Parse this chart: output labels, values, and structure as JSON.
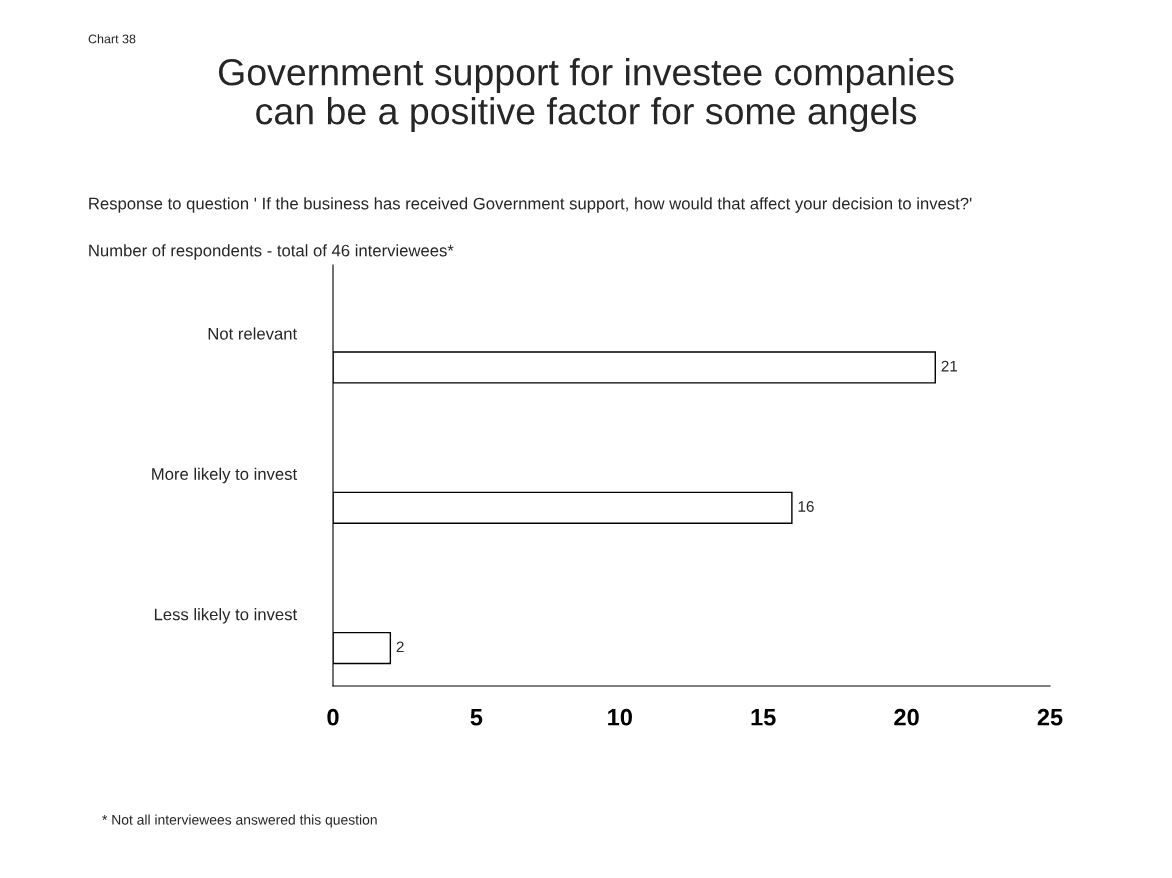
{
  "chart_data": {
    "type": "bar",
    "orientation": "horizontal",
    "title": "Government support for investee companies\ncan be a positive factor for some angels",
    "subtitle": "Response to question ' If the business has received Government support, how would that affect your decision to invest?'",
    "annotations": [
      "Chart 38",
      "Number of respondents - total of 46 interviewees*",
      "* Not all interviewees answered this question"
    ],
    "categories": [
      "Not relevant",
      "More likely to invest",
      "Less likely to invest"
    ],
    "values": [
      21,
      16,
      2
    ],
    "color": "#ffffff",
    "data_labels": true,
    "xlim": [
      0,
      25
    ],
    "xticks": [
      0,
      5,
      10,
      15,
      20,
      25
    ],
    "grid": false,
    "legend": false
  }
}
